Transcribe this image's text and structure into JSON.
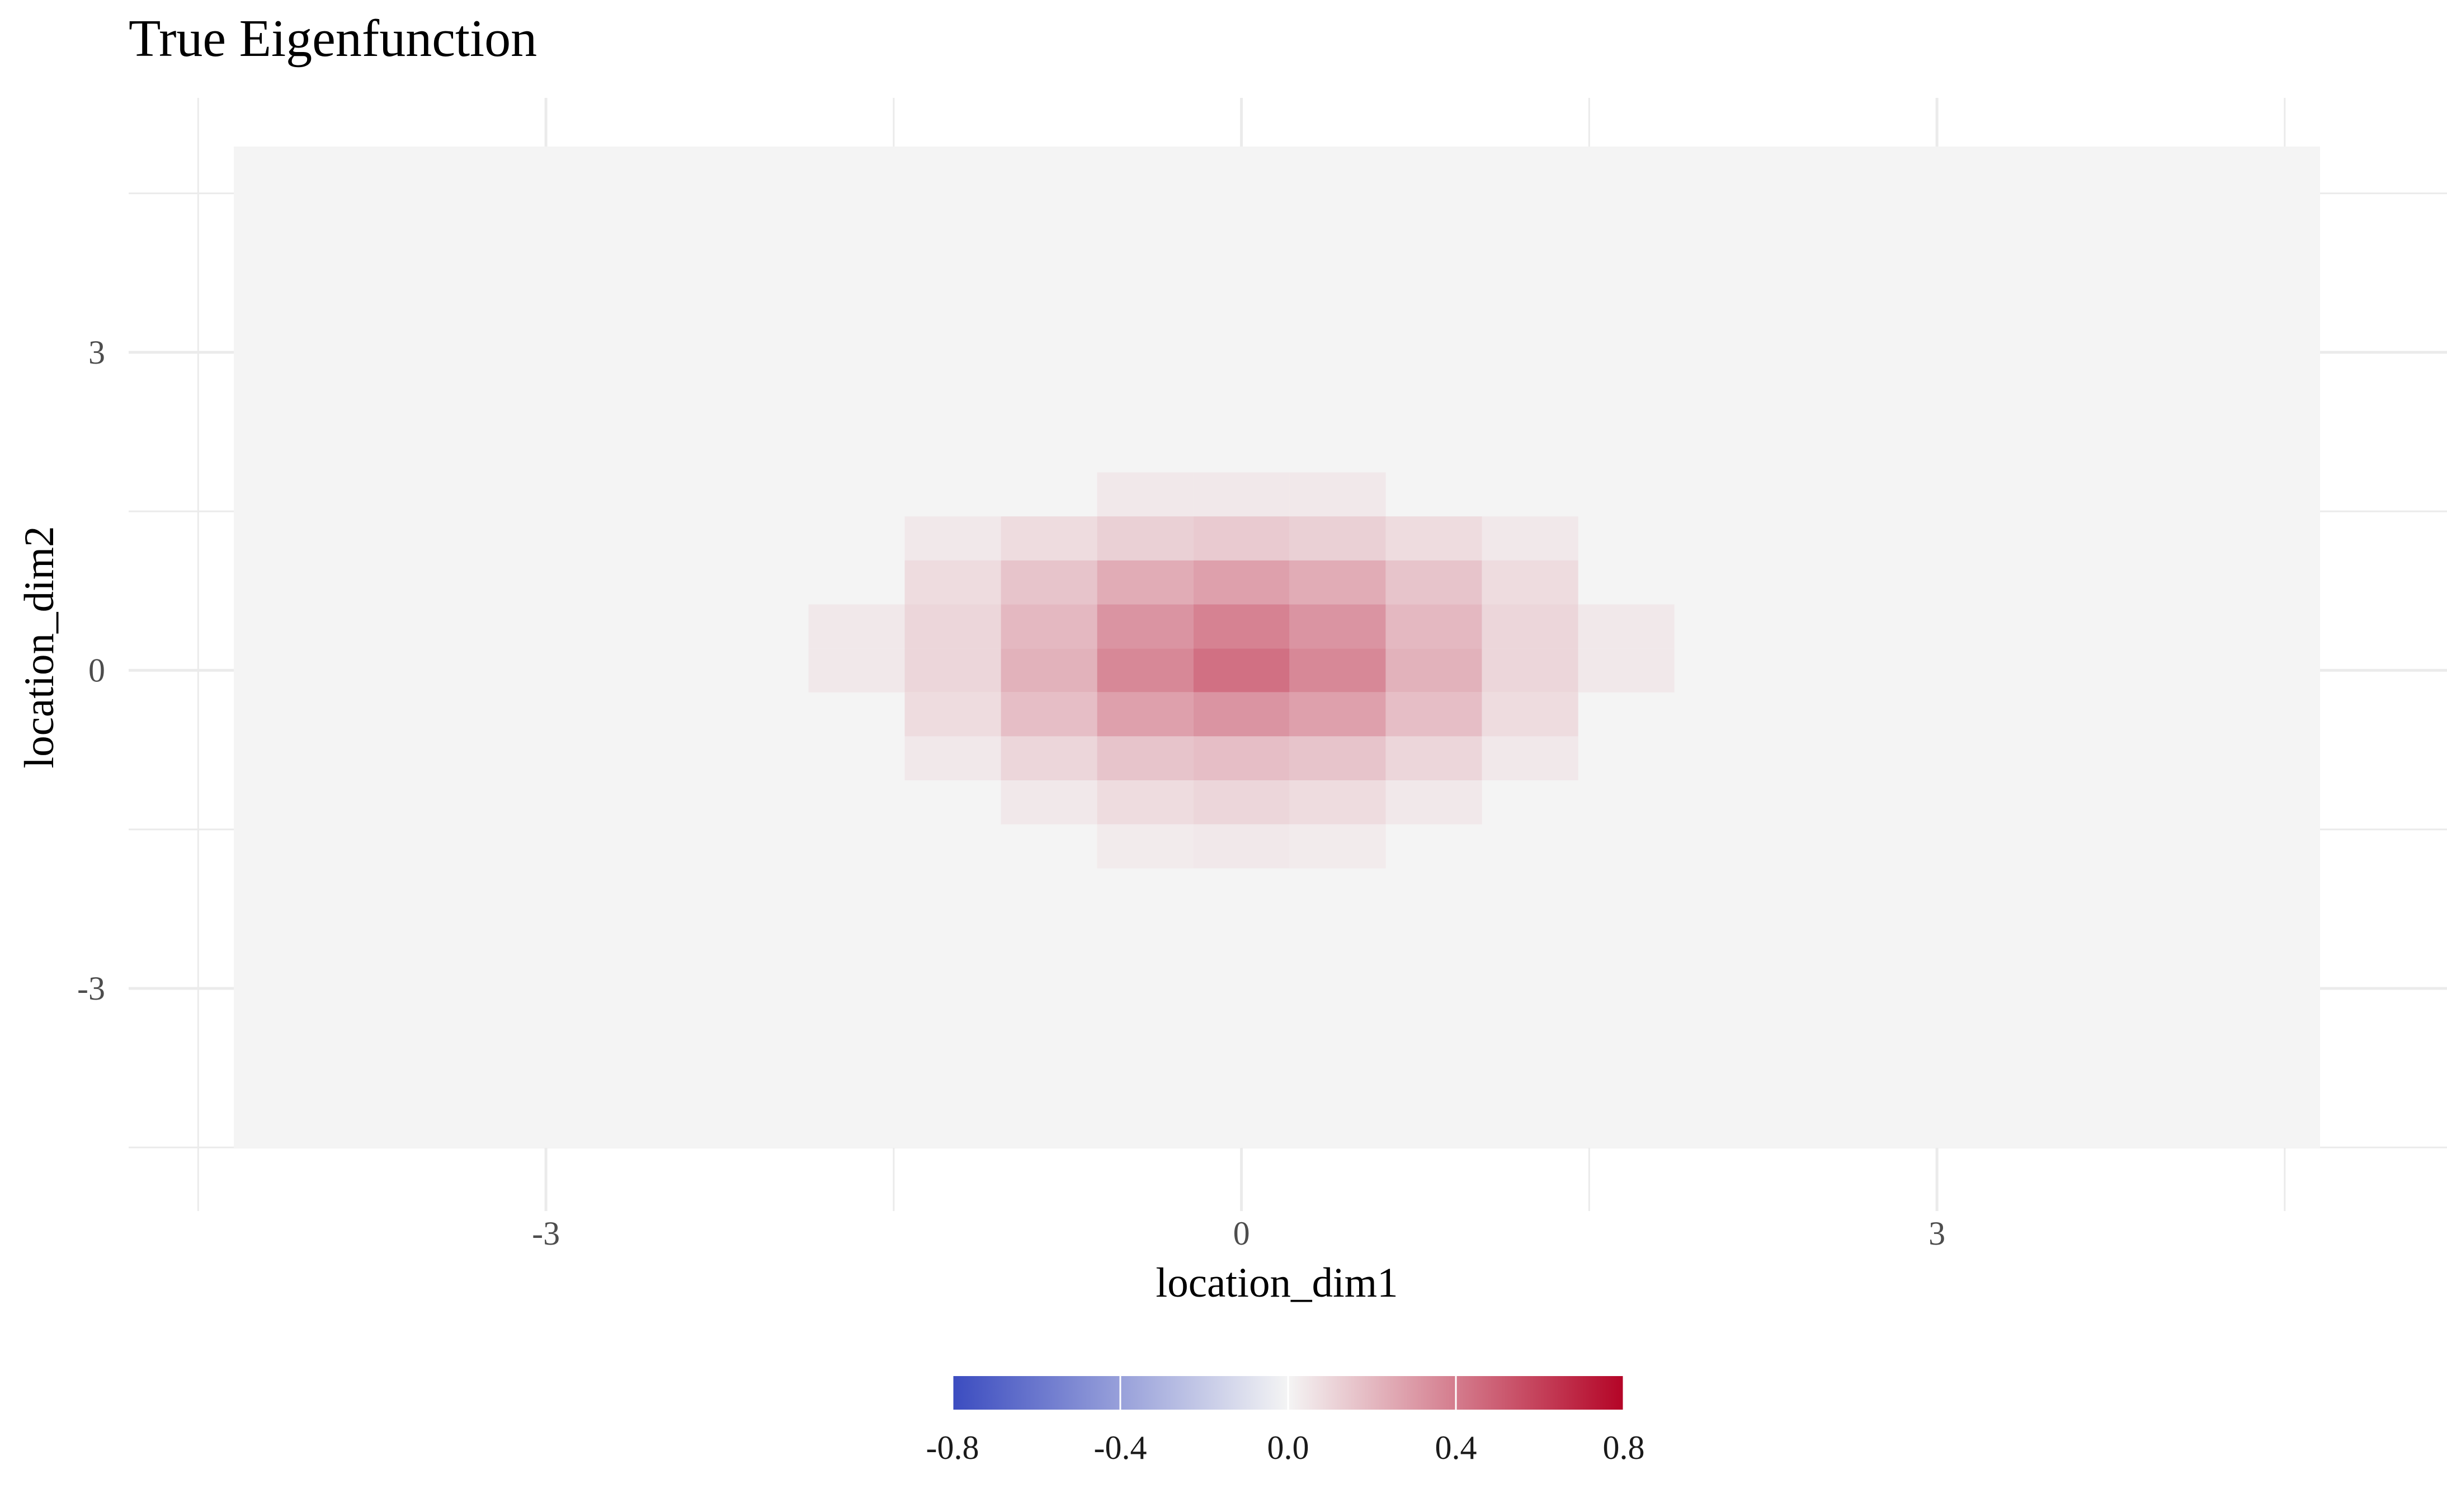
{
  "chart_data": {
    "type": "heatmap",
    "title": "True Eigenfunction",
    "xlabel": "location_dim1",
    "ylabel": "location_dim2",
    "xlim": [
      -4.8,
      5.2
    ],
    "ylim": [
      -5.1,
      5.4
    ],
    "x_ticks": [
      -3,
      0,
      3
    ],
    "x_tick_labels": [
      "-3",
      "0",
      "3"
    ],
    "y_ticks": [
      -3,
      0,
      3
    ],
    "y_tick_labels": [
      "-3",
      "0",
      "3"
    ],
    "grid": true,
    "background_value": 0.0,
    "tile_width": 0.415,
    "tile_height": 0.415,
    "tiles": [
      {
        "x": -0.415,
        "y": 1.66,
        "value": 0.04
      },
      {
        "x": 0.0,
        "y": 1.66,
        "value": 0.04
      },
      {
        "x": 0.415,
        "y": 1.66,
        "value": 0.04
      },
      {
        "x": -1.245,
        "y": 1.245,
        "value": 0.04
      },
      {
        "x": -0.83,
        "y": 1.245,
        "value": 0.08
      },
      {
        "x": -0.415,
        "y": 1.245,
        "value": 0.12
      },
      {
        "x": 0.0,
        "y": 1.245,
        "value": 0.14
      },
      {
        "x": 0.415,
        "y": 1.245,
        "value": 0.12
      },
      {
        "x": 0.83,
        "y": 1.245,
        "value": 0.08
      },
      {
        "x": 1.245,
        "y": 1.245,
        "value": 0.04
      },
      {
        "x": -1.245,
        "y": 0.83,
        "value": 0.08
      },
      {
        "x": -0.83,
        "y": 0.83,
        "value": 0.16
      },
      {
        "x": -0.415,
        "y": 0.83,
        "value": 0.24
      },
      {
        "x": 0.0,
        "y": 0.83,
        "value": 0.28
      },
      {
        "x": 0.415,
        "y": 0.83,
        "value": 0.24
      },
      {
        "x": 0.83,
        "y": 0.83,
        "value": 0.16
      },
      {
        "x": 1.245,
        "y": 0.83,
        "value": 0.08
      },
      {
        "x": -1.66,
        "y": 0.415,
        "value": 0.04
      },
      {
        "x": -1.245,
        "y": 0.415,
        "value": 0.1
      },
      {
        "x": -0.83,
        "y": 0.415,
        "value": 0.2
      },
      {
        "x": -0.415,
        "y": 0.415,
        "value": 0.32
      },
      {
        "x": 0.0,
        "y": 0.415,
        "value": 0.38
      },
      {
        "x": 0.415,
        "y": 0.415,
        "value": 0.32
      },
      {
        "x": 0.83,
        "y": 0.415,
        "value": 0.2
      },
      {
        "x": 1.245,
        "y": 0.415,
        "value": 0.1
      },
      {
        "x": 1.66,
        "y": 0.415,
        "value": 0.04
      },
      {
        "x": -1.66,
        "y": 0.0,
        "value": 0.04
      },
      {
        "x": -1.245,
        "y": 0.0,
        "value": 0.1
      },
      {
        "x": -0.83,
        "y": 0.0,
        "value": 0.22
      },
      {
        "x": -0.415,
        "y": 0.0,
        "value": 0.36
      },
      {
        "x": 0.0,
        "y": 0.0,
        "value": 0.44
      },
      {
        "x": 0.415,
        "y": 0.0,
        "value": 0.36
      },
      {
        "x": 0.83,
        "y": 0.0,
        "value": 0.22
      },
      {
        "x": 1.245,
        "y": 0.0,
        "value": 0.1
      },
      {
        "x": 1.66,
        "y": 0.0,
        "value": 0.04
      },
      {
        "x": -1.245,
        "y": -0.415,
        "value": 0.08
      },
      {
        "x": -0.83,
        "y": -0.415,
        "value": 0.18
      },
      {
        "x": -0.415,
        "y": -0.415,
        "value": 0.28
      },
      {
        "x": 0.0,
        "y": -0.415,
        "value": 0.32
      },
      {
        "x": 0.415,
        "y": -0.415,
        "value": 0.28
      },
      {
        "x": 0.83,
        "y": -0.415,
        "value": 0.18
      },
      {
        "x": 1.245,
        "y": -0.415,
        "value": 0.08
      },
      {
        "x": -1.245,
        "y": -0.83,
        "value": 0.04
      },
      {
        "x": -0.83,
        "y": -0.83,
        "value": 0.1
      },
      {
        "x": -0.415,
        "y": -0.83,
        "value": 0.16
      },
      {
        "x": 0.0,
        "y": -0.83,
        "value": 0.18
      },
      {
        "x": 0.415,
        "y": -0.83,
        "value": 0.16
      },
      {
        "x": 0.83,
        "y": -0.83,
        "value": 0.1
      },
      {
        "x": 1.245,
        "y": -0.83,
        "value": 0.04
      },
      {
        "x": -0.83,
        "y": -1.245,
        "value": 0.04
      },
      {
        "x": -0.415,
        "y": -1.245,
        "value": 0.08
      },
      {
        "x": 0.0,
        "y": -1.245,
        "value": 0.1
      },
      {
        "x": 0.415,
        "y": -1.245,
        "value": 0.08
      },
      {
        "x": 0.83,
        "y": -1.245,
        "value": 0.04
      },
      {
        "x": -0.415,
        "y": -1.66,
        "value": 0.03
      },
      {
        "x": 0.0,
        "y": -1.66,
        "value": 0.04
      },
      {
        "x": 0.415,
        "y": -1.66,
        "value": 0.03
      }
    ],
    "legend": {
      "placement": "bottom",
      "min": -0.8,
      "max": 0.8,
      "ticks": [
        -0.8,
        -0.4,
        0.0,
        0.4,
        0.8
      ],
      "tick_labels": [
        "-0.8",
        "-0.4",
        "0.0",
        "0.4",
        "0.8"
      ]
    },
    "colors": {
      "low": "#3b4cc0",
      "mid": "#f4f4f4",
      "high": "#b40426",
      "grid": "#ebebeb"
    }
  }
}
